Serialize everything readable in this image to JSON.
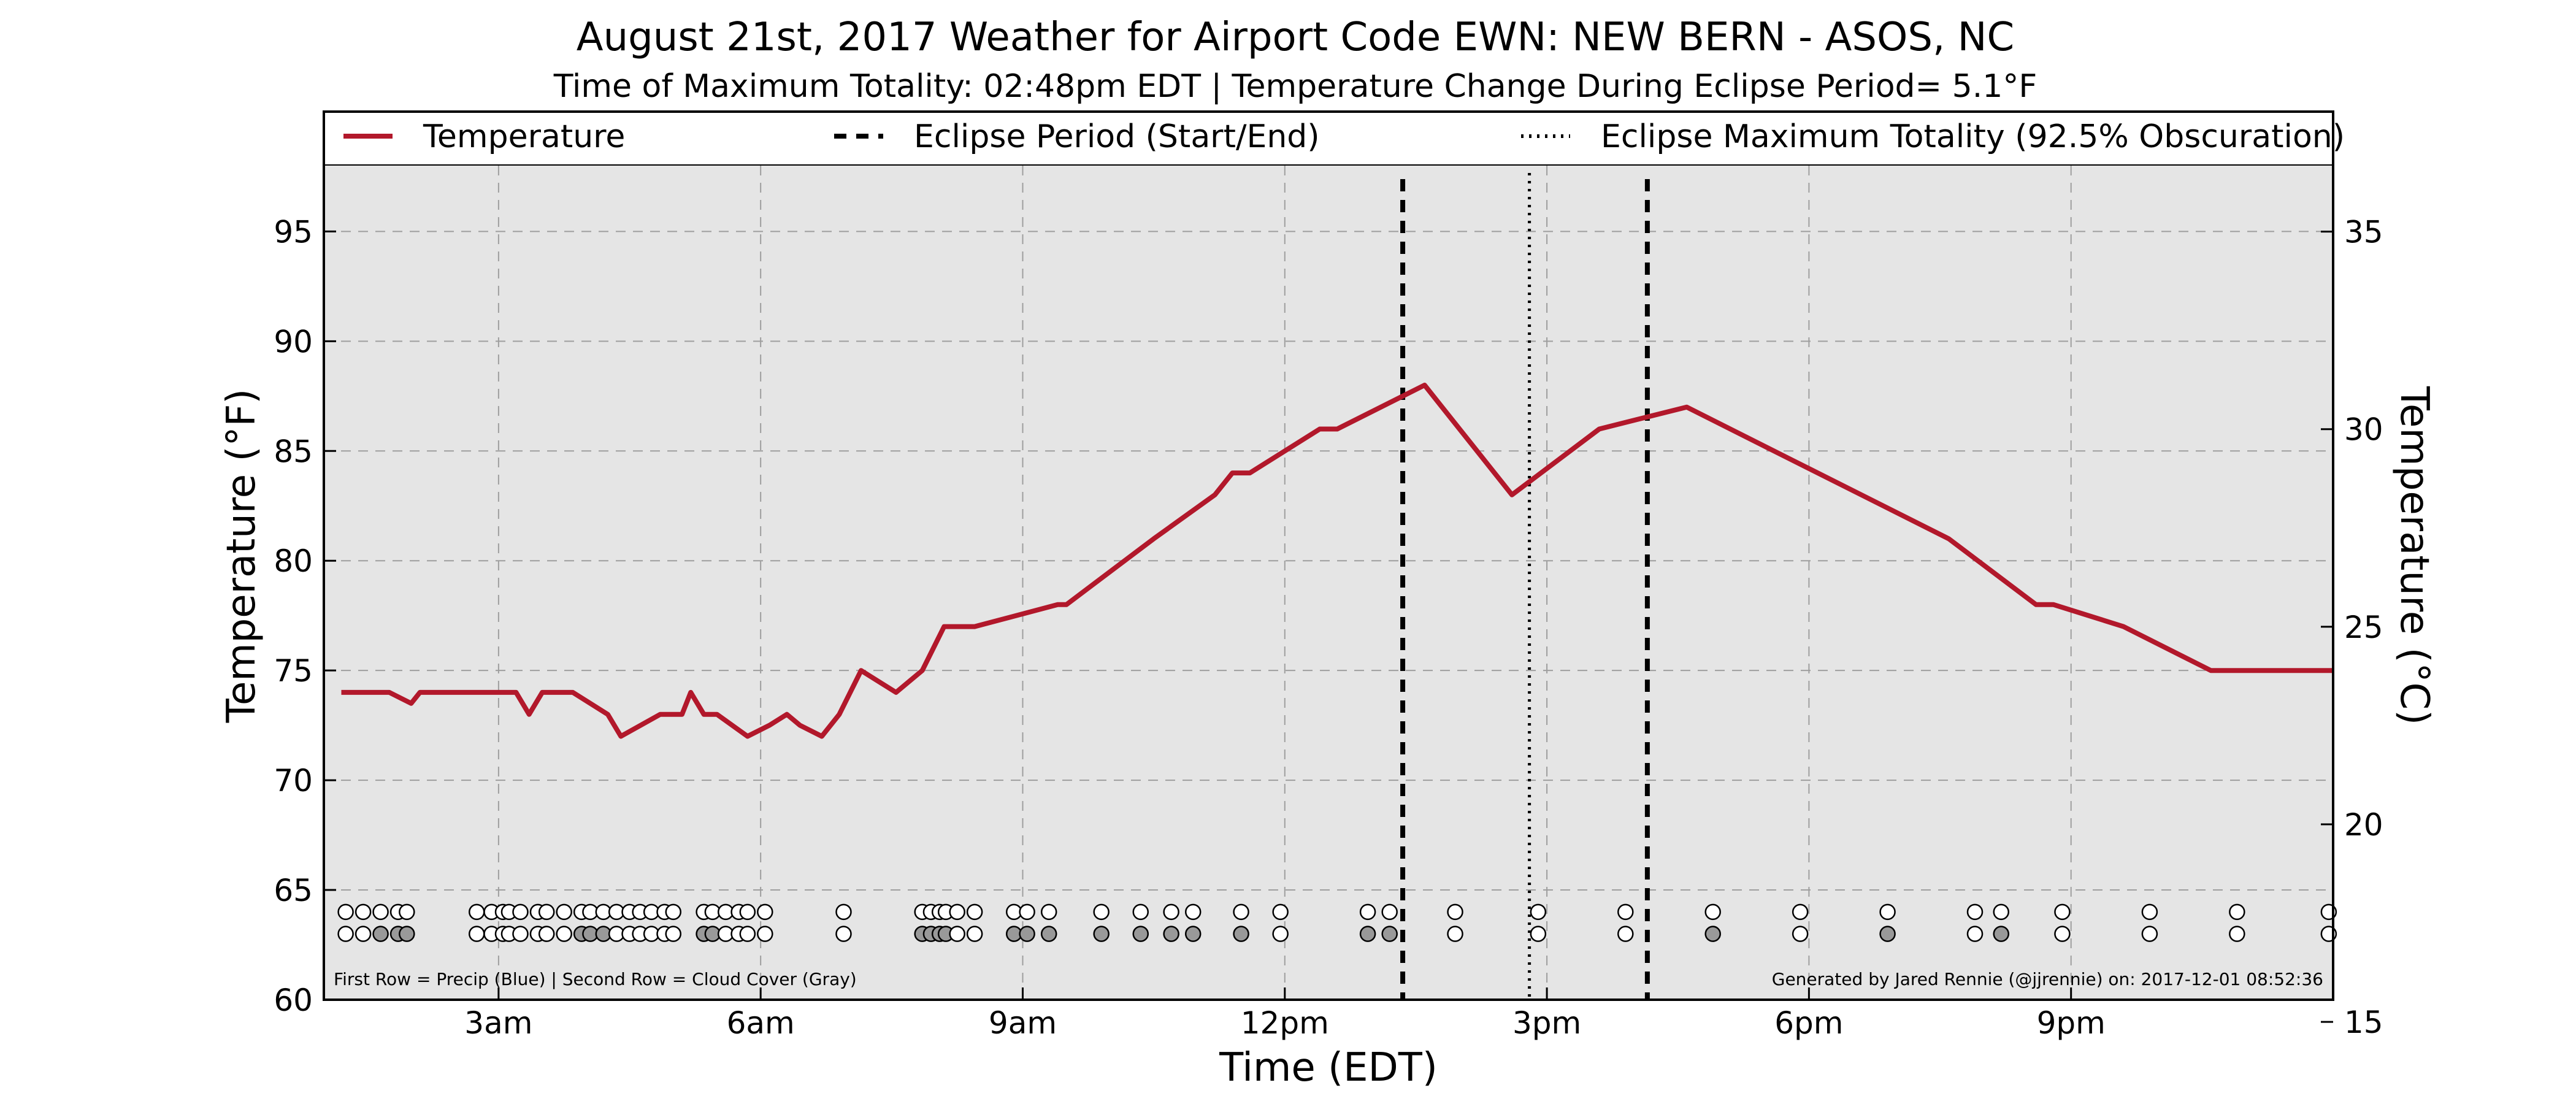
{
  "chart_data": {
    "type": "line",
    "title": "August 21st, 2017 Weather for Airport Code EWN: NEW BERN - ASOS, NC",
    "subtitle": "Time of Maximum Totality: 02:48pm EDT | Temperature Change During Eclipse Period= 5.1°F",
    "xlabel": "Time (EDT)",
    "ylabel": "Temperature (°F)",
    "y2label": "Temperature (°C)",
    "xlim": [
      1.0,
      24.0
    ],
    "ylim": [
      60,
      98
    ],
    "y2lim": [
      15.56,
      36.67
    ],
    "grid": true,
    "legend_position": "top",
    "x_ticks": [
      {
        "value": 3,
        "label": "3am"
      },
      {
        "value": 6,
        "label": "6am"
      },
      {
        "value": 9,
        "label": "9am"
      },
      {
        "value": 12,
        "label": "12pm"
      },
      {
        "value": 15,
        "label": "3pm"
      },
      {
        "value": 18,
        "label": "6pm"
      },
      {
        "value": 21,
        "label": "9pm"
      }
    ],
    "y_ticks": [
      {
        "value": 60,
        "label": "60"
      },
      {
        "value": 65,
        "label": "65"
      },
      {
        "value": 70,
        "label": "70"
      },
      {
        "value": 75,
        "label": "75"
      },
      {
        "value": 80,
        "label": "80"
      },
      {
        "value": 85,
        "label": "85"
      },
      {
        "value": 90,
        "label": "90"
      },
      {
        "value": 95,
        "label": "95"
      }
    ],
    "y2_ticks": [
      {
        "value": 15,
        "label": "15"
      },
      {
        "value": 20,
        "label": "20"
      },
      {
        "value": 25,
        "label": "25"
      },
      {
        "value": 30,
        "label": "30"
      },
      {
        "value": 35,
        "label": "35"
      }
    ],
    "legend": [
      {
        "label": "Temperature",
        "style": "solid",
        "color": "#b2182b"
      },
      {
        "label": "Eclipse Period (Start/End)",
        "style": "dashed",
        "color": "#000000"
      },
      {
        "label": "Eclipse Maximum Totality (92.5% Obscuration)",
        "style": "dotted",
        "color": "#000000"
      }
    ],
    "series": [
      {
        "name": "Temperature",
        "color": "#b2182b",
        "x": [
          1.2,
          1.6,
          1.75,
          1.9,
          2.0,
          2.1,
          3.0,
          3.2,
          3.35,
          3.5,
          3.85,
          4.25,
          4.4,
          4.85,
          5.1,
          5.2,
          5.35,
          5.5,
          5.85,
          6.1,
          6.3,
          6.45,
          6.7,
          6.9,
          7.15,
          7.35,
          7.55,
          7.85,
          8.1,
          8.45,
          9.4,
          9.5,
          10.5,
          11.2,
          11.4,
          11.6,
          12.4,
          12.6,
          13.6,
          13.8,
          14.6,
          15.6,
          16.6,
          17.6,
          19.6,
          20.6,
          20.8,
          21.6,
          22.6,
          23.6,
          24.0
        ],
        "y": [
          74,
          74,
          74,
          73.7,
          73.5,
          74,
          74,
          74,
          73,
          74,
          74,
          73,
          72,
          73,
          73,
          74,
          73,
          73,
          72,
          72.5,
          73,
          72.5,
          72,
          73,
          75,
          74.5,
          74,
          75,
          77,
          77,
          78,
          78,
          81,
          83,
          84,
          84,
          86,
          86,
          88,
          87,
          83,
          86,
          87,
          85,
          81,
          78,
          78,
          77,
          75,
          75,
          75
        ]
      }
    ],
    "eclipse_start_x": 13.35,
    "eclipse_max_x": 14.8,
    "eclipse_end_x": 16.15,
    "observations": [
      {
        "x": 1.25,
        "precip": false,
        "cloud": false
      },
      {
        "x": 1.45,
        "precip": false,
        "cloud": false
      },
      {
        "x": 1.65,
        "precip": false,
        "cloud": true
      },
      {
        "x": 1.85,
        "precip": false,
        "cloud": true
      },
      {
        "x": 1.95,
        "precip": false,
        "cloud": true
      },
      {
        "x": 2.75,
        "precip": false,
        "cloud": false
      },
      {
        "x": 2.92,
        "precip": false,
        "cloud": false
      },
      {
        "x": 3.05,
        "precip": false,
        "cloud": false
      },
      {
        "x": 3.12,
        "precip": false,
        "cloud": false
      },
      {
        "x": 3.25,
        "precip": false,
        "cloud": false
      },
      {
        "x": 3.45,
        "precip": false,
        "cloud": false
      },
      {
        "x": 3.55,
        "precip": false,
        "cloud": false
      },
      {
        "x": 3.75,
        "precip": false,
        "cloud": false
      },
      {
        "x": 3.95,
        "precip": false,
        "cloud": true
      },
      {
        "x": 4.05,
        "precip": false,
        "cloud": true
      },
      {
        "x": 4.2,
        "precip": false,
        "cloud": true
      },
      {
        "x": 4.35,
        "precip": false,
        "cloud": false
      },
      {
        "x": 4.5,
        "precip": false,
        "cloud": false
      },
      {
        "x": 4.62,
        "precip": false,
        "cloud": false
      },
      {
        "x": 4.75,
        "precip": false,
        "cloud": false
      },
      {
        "x": 4.9,
        "precip": false,
        "cloud": false
      },
      {
        "x": 5.0,
        "precip": false,
        "cloud": false
      },
      {
        "x": 5.35,
        "precip": false,
        "cloud": true
      },
      {
        "x": 5.45,
        "precip": false,
        "cloud": true
      },
      {
        "x": 5.6,
        "precip": false,
        "cloud": false
      },
      {
        "x": 5.75,
        "precip": false,
        "cloud": false
      },
      {
        "x": 5.85,
        "precip": false,
        "cloud": false
      },
      {
        "x": 6.05,
        "precip": false,
        "cloud": false
      },
      {
        "x": 6.95,
        "precip": false,
        "cloud": false
      },
      {
        "x": 7.85,
        "precip": false,
        "cloud": true
      },
      {
        "x": 7.95,
        "precip": false,
        "cloud": true
      },
      {
        "x": 8.05,
        "precip": false,
        "cloud": true
      },
      {
        "x": 8.12,
        "precip": false,
        "cloud": true
      },
      {
        "x": 8.25,
        "precip": false,
        "cloud": false
      },
      {
        "x": 8.45,
        "precip": false,
        "cloud": false
      },
      {
        "x": 8.9,
        "precip": false,
        "cloud": true
      },
      {
        "x": 9.05,
        "precip": false,
        "cloud": true
      },
      {
        "x": 9.3,
        "precip": false,
        "cloud": true
      },
      {
        "x": 9.9,
        "precip": false,
        "cloud": true
      },
      {
        "x": 10.35,
        "precip": false,
        "cloud": true
      },
      {
        "x": 10.7,
        "precip": false,
        "cloud": true
      },
      {
        "x": 10.95,
        "precip": false,
        "cloud": true
      },
      {
        "x": 11.5,
        "precip": false,
        "cloud": true
      },
      {
        "x": 11.95,
        "precip": false,
        "cloud": false
      },
      {
        "x": 12.95,
        "precip": false,
        "cloud": true
      },
      {
        "x": 13.2,
        "precip": false,
        "cloud": true
      },
      {
        "x": 13.95,
        "precip": false,
        "cloud": false
      },
      {
        "x": 14.9,
        "precip": false,
        "cloud": false
      },
      {
        "x": 15.9,
        "precip": false,
        "cloud": false
      },
      {
        "x": 16.9,
        "precip": false,
        "cloud": true
      },
      {
        "x": 17.9,
        "precip": false,
        "cloud": false
      },
      {
        "x": 18.9,
        "precip": false,
        "cloud": true
      },
      {
        "x": 19.9,
        "precip": false,
        "cloud": false
      },
      {
        "x": 20.2,
        "precip": false,
        "cloud": true
      },
      {
        "x": 20.9,
        "precip": false,
        "cloud": false
      },
      {
        "x": 21.9,
        "precip": false,
        "cloud": false
      },
      {
        "x": 22.9,
        "precip": false,
        "cloud": false
      },
      {
        "x": 23.95,
        "precip": false,
        "cloud": false
      }
    ],
    "obs_row_levels": [
      64,
      63
    ],
    "colors": {
      "temperature": "#b2182b",
      "plot_background": "#e5e5e5",
      "grid": "#9e9e9e",
      "cloud_fill": "#999999",
      "precip_fill": "#4a7fc1",
      "empty_fill": "#ffffff"
    },
    "annotations": {
      "row_note": "First Row = Precip (Blue) | Second Row = Cloud Cover (Gray)",
      "credit": "Generated by Jared Rennie (@jjrennie) on: 2017-12-01 08:52:36"
    }
  }
}
